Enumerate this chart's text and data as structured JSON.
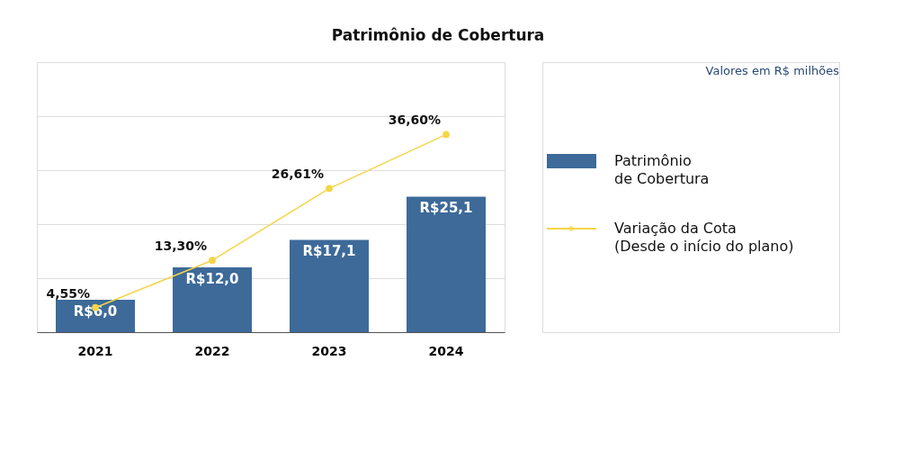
{
  "chart_data": {
    "type": "bar",
    "title": "Patrimônio de Cobertura",
    "annotations": [
      "Valores em R$ milhões"
    ],
    "categories": [
      "2021",
      "2022",
      "2023",
      "2024"
    ],
    "series": [
      {
        "name": "Patrimônio\nde Cobertura",
        "color": "#3d6a99",
        "values": [
          6.0,
          12.0,
          17.1,
          25.1
        ],
        "value_labels": [
          "R$6,0",
          "R$12,0",
          "R$17,1",
          "R$25,1"
        ]
      },
      {
        "name": "Variação da Cota\n(Desde o início do plano)",
        "type": "line",
        "color": "#f5d547",
        "values": [
          4.55,
          13.3,
          26.61,
          36.6
        ],
        "value_labels": [
          "4,55%",
          "13,30%",
          "26,61%",
          "36,60%"
        ]
      }
    ],
    "ylim": [
      0,
      50
    ],
    "yticks": [
      {
        "value": 0,
        "label": null
      },
      {
        "value": 10,
        "label": null
      },
      {
        "value": 20,
        "label": null
      },
      {
        "value": 30,
        "label": null
      },
      {
        "value": 40,
        "label": null
      },
      {
        "value": 50,
        "label": null
      }
    ],
    "tick_labels": "x",
    "grid": "y",
    "legend": "right",
    "marker": "circle",
    "line_style": "solid"
  }
}
